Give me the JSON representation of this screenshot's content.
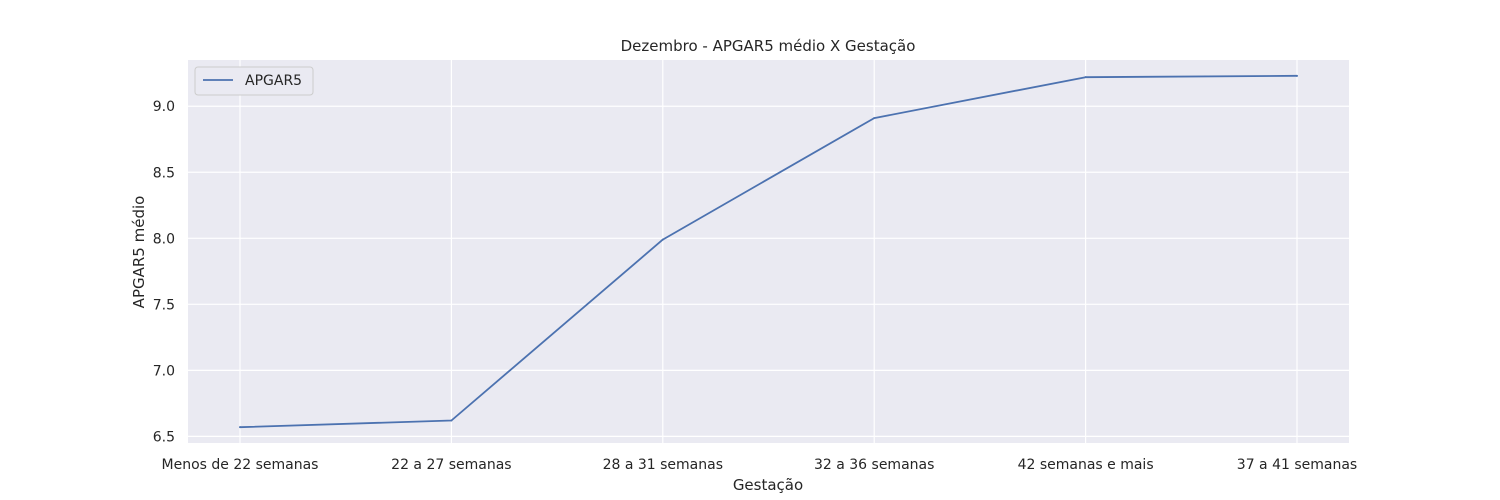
{
  "chart_data": {
    "type": "line",
    "title": "Dezembro - APGAR5 médio X Gestação",
    "xlabel": "Gestação",
    "ylabel": "APGAR5 médio",
    "categories": [
      "Menos de 22 semanas",
      "22 a 27 semanas",
      "28 a 31 semanas",
      "32 a 36 semanas",
      "42 semanas e mais",
      "37 a 41 semanas"
    ],
    "series": [
      {
        "name": "APGAR5",
        "values": [
          6.57,
          6.62,
          7.99,
          8.91,
          9.22,
          9.23
        ],
        "color": "#4c72b0"
      }
    ],
    "ylim": [
      6.45,
      9.35
    ],
    "yticks": [
      6.5,
      7.0,
      7.5,
      8.0,
      8.5,
      9.0
    ],
    "ytick_labels": [
      "6.5",
      "7.0",
      "7.5",
      "8.0",
      "8.5",
      "9.0"
    ],
    "grid": true,
    "legend_position": "top-left",
    "background": "#eaeaf2",
    "grid_color": "#ffffff"
  }
}
